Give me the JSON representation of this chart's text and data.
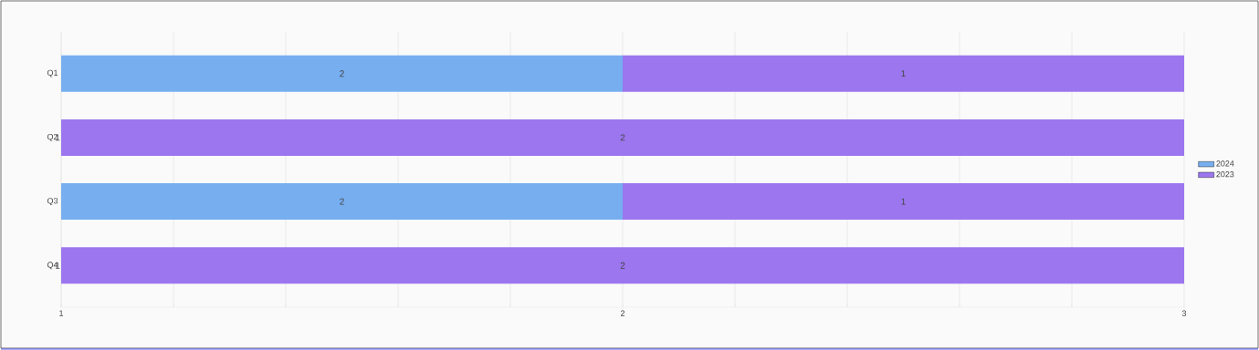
{
  "chart_data": {
    "type": "bar",
    "orientation": "horizontal",
    "stacked": true,
    "categories": [
      "Q1",
      "Q2",
      "Q3",
      "Q4"
    ],
    "series": [
      {
        "name": "2024",
        "color": "#76aef0",
        "values": [
          2,
          1,
          2,
          1
        ],
        "value_labels": [
          "2",
          "1",
          "2",
          "1"
        ]
      },
      {
        "name": "2023",
        "color": "#9b76ef",
        "values": [
          1,
          2,
          1,
          2
        ],
        "value_labels": [
          "1",
          "2",
          "1",
          "2"
        ]
      }
    ],
    "xlim": [
      1,
      3
    ],
    "xticks": [
      1,
      {
        "value": 1.2,
        "label": null
      },
      {
        "value": 1.4,
        "label": null
      },
      {
        "value": 1.6,
        "label": null
      },
      {
        "value": 1.8,
        "label": null
      },
      2,
      {
        "value": 2.2,
        "label": null
      },
      {
        "value": 2.4,
        "label": null
      },
      {
        "value": 2.6,
        "label": null
      },
      {
        "value": 2.8,
        "label": null
      },
      3
    ],
    "grid": "x",
    "legend": "right"
  }
}
